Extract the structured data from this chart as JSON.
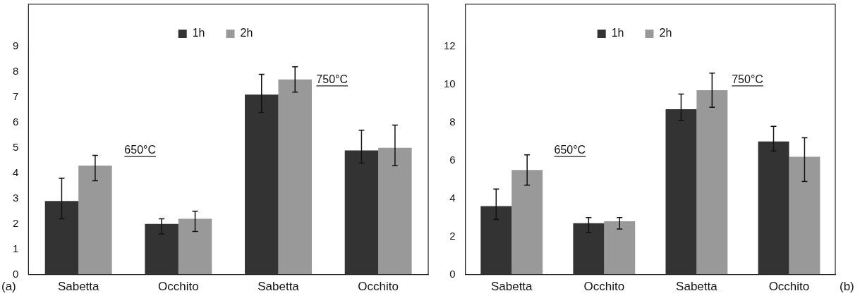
{
  "chart_data": [
    {
      "type": "bar",
      "categories": [
        "Sabetta",
        "Occhito",
        "Sabetta",
        "Occhito"
      ],
      "ylim": [
        0,
        9
      ],
      "yticks": [
        0,
        1,
        2,
        3,
        4,
        5,
        6,
        7,
        8,
        9
      ],
      "grid": false,
      "legend": "top",
      "annotations": [
        "650°C",
        "750°C",
        "(a)"
      ],
      "series": [
        {
          "name": "1h",
          "color": "#333333",
          "values": [
            2.9,
            2.0,
            7.1,
            4.9
          ],
          "errors": [
            [
              2.2,
              3.8
            ],
            [
              1.6,
              2.2
            ],
            [
              6.4,
              7.9
            ],
            [
              4.4,
              5.7
            ]
          ]
        },
        {
          "name": "2h",
          "color": "#999999",
          "values": [
            4.3,
            2.2,
            7.7,
            5.0
          ],
          "errors": [
            [
              3.7,
              4.7
            ],
            [
              1.7,
              2.5
            ],
            [
              7.2,
              8.2
            ],
            [
              4.3,
              5.9
            ]
          ]
        }
      ]
    },
    {
      "type": "bar",
      "categories": [
        "Sabetta",
        "Occhito",
        "Sabetta",
        "Occhito"
      ],
      "ylim": [
        0,
        12
      ],
      "yticks": [
        0,
        2,
        4,
        6,
        8,
        10,
        12
      ],
      "grid": false,
      "legend": "top",
      "annotations": [
        "650°C",
        "750°C",
        "(b)"
      ],
      "series": [
        {
          "name": "1h",
          "color": "#333333",
          "values": [
            3.6,
            2.7,
            8.7,
            7.0
          ],
          "errors": [
            [
              2.9,
              4.5
            ],
            [
              2.2,
              3.0
            ],
            [
              8.1,
              9.5
            ],
            [
              6.5,
              7.8
            ]
          ]
        },
        {
          "name": "2h",
          "color": "#999999",
          "values": [
            5.5,
            2.8,
            9.7,
            6.2
          ],
          "errors": [
            [
              4.7,
              6.3
            ],
            [
              2.4,
              3.0
            ],
            [
              8.8,
              10.6
            ],
            [
              4.9,
              7.2
            ]
          ]
        }
      ]
    }
  ]
}
